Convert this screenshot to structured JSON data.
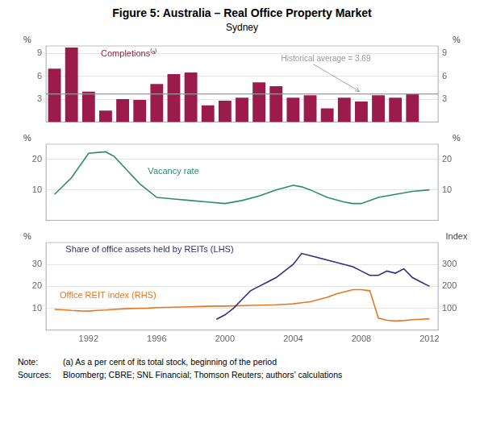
{
  "title": "Figure 5: Australia – Real Office Property Market",
  "subtitle": "Sydney",
  "notes": [
    {
      "label": "Note:",
      "text": "(a) As a per cent of its total stock, beginning of the period"
    },
    {
      "label": "Sources:",
      "text": "Bloomberg; CBRE; SNL Financial; Thomson Reuters; authors’ calculations"
    }
  ],
  "chart_data": [
    {
      "type": "bar",
      "x": [
        1990,
        1991,
        1992,
        1993,
        1994,
        1995,
        1996,
        1997,
        1998,
        1999,
        2000,
        2001,
        2002,
        2003,
        2004,
        2005,
        2006,
        2007,
        2008,
        2009,
        2010,
        2011
      ],
      "series": [
        {
          "name": "Completions⁽ᵃ⁾",
          "color": "#9B1B4A",
          "values": [
            7.0,
            9.8,
            4.0,
            1.5,
            3.0,
            2.9,
            5.0,
            6.3,
            6.5,
            2.2,
            2.8,
            3.2,
            5.2,
            4.7,
            3.2,
            3.5,
            1.8,
            3.2,
            2.7,
            3.5,
            3.2,
            3.7
          ]
        }
      ],
      "annotations": [
        {
          "text": "Historical average = 3.69",
          "y": 3.69,
          "color": "#999999"
        }
      ],
      "xlim": [
        1989.5,
        2012.5
      ],
      "ylim": [
        0,
        10
      ],
      "yticks": [
        3,
        6,
        9
      ],
      "ylabel": "%",
      "y2lim": [
        0,
        10
      ],
      "y2ticks": [
        3,
        6,
        9
      ],
      "y2label": "%",
      "grid": "y",
      "tick_labels": "y"
    },
    {
      "type": "line",
      "x": [
        1990,
        1991,
        1992,
        1993,
        1993.5,
        1994,
        1995,
        1996,
        1997,
        1998,
        1999,
        2000,
        2001,
        2002,
        2003,
        2004,
        2004.5,
        2005,
        2006,
        2007,
        2007.5,
        2008,
        2009,
        2010,
        2011,
        2012
      ],
      "series": [
        {
          "name": "Vacancy rate",
          "color": "#2D8B72",
          "values": [
            8.5,
            14.0,
            22.0,
            22.5,
            21.0,
            18.0,
            12.0,
            7.5,
            7.0,
            6.5,
            6.0,
            5.5,
            6.5,
            8.0,
            10.0,
            11.5,
            11.0,
            10.0,
            7.5,
            6.0,
            5.5,
            5.5,
            7.5,
            8.5,
            9.5,
            10.0
          ]
        }
      ],
      "xlim": [
        1989.5,
        2012.5
      ],
      "ylim": [
        0,
        25
      ],
      "yticks": [
        10,
        20
      ],
      "ylabel": "%",
      "y2lim": [
        0,
        25
      ],
      "y2ticks": [
        10,
        20
      ],
      "y2label": "%",
      "grid": "y",
      "tick_labels": "y"
    },
    {
      "type": "line",
      "series": [
        {
          "name": "Share of office assets held by REITs (LHS)",
          "color": "#2B3080",
          "axis": "y",
          "x": [
            1999.5,
            2000.0,
            2000.5,
            2001.0,
            2001.5,
            2002.0,
            2002.5,
            2003.0,
            2003.5,
            2004.0,
            2004.5,
            2005.0,
            2005.5,
            2006.0,
            2006.5,
            2007.0,
            2007.5,
            2008.0,
            2008.5,
            2009.0,
            2009.5,
            2010.0,
            2010.5,
            2011.0,
            2011.5,
            2012.0
          ],
          "values": [
            5,
            7,
            10,
            14,
            18,
            20,
            22,
            24,
            27,
            30,
            35,
            34,
            33,
            32,
            31,
            30,
            29,
            27,
            25,
            25,
            27,
            26,
            28,
            24,
            22,
            20
          ]
        },
        {
          "name": "Office REIT index (RHS)",
          "color": "#E87722",
          "axis": "y2",
          "x": [
            1990.0,
            1990.5,
            1991.0,
            1991.5,
            1992.0,
            1992.5,
            1993.0,
            1993.5,
            1994.0,
            1994.5,
            1995.0,
            1995.5,
            1996.0,
            1996.5,
            1997.0,
            1997.5,
            1998.0,
            1998.5,
            1999.0,
            1999.5,
            2000.0,
            2000.5,
            2001.0,
            2001.5,
            2002.0,
            2002.5,
            2003.0,
            2003.5,
            2004.0,
            2004.5,
            2005.0,
            2005.5,
            2006.0,
            2006.5,
            2007.0,
            2007.5,
            2008.0,
            2008.5,
            2009.0,
            2009.5,
            2010.0,
            2010.5,
            2011.0,
            2011.5,
            2012.0
          ],
          "values": [
            95,
            93,
            90,
            88,
            87,
            90,
            92,
            95,
            97,
            99,
            100,
            101,
            103,
            104,
            105,
            106,
            107,
            108,
            109,
            110,
            110,
            111,
            112,
            113,
            114,
            115,
            116,
            118,
            120,
            125,
            130,
            140,
            150,
            165,
            175,
            185,
            185,
            180,
            55,
            45,
            42,
            44,
            48,
            50,
            52
          ]
        }
      ],
      "xlim": [
        1989.5,
        2012.5
      ],
      "xticks": [
        1992,
        1996,
        2000,
        2004,
        2008,
        2012
      ],
      "ylim": [
        0,
        40
      ],
      "yticks": [
        10,
        20,
        30
      ],
      "ylabel": "%",
      "y2lim": [
        0,
        400
      ],
      "y2ticks": [
        100,
        200,
        300
      ],
      "y2label": "Index",
      "grid": "y"
    }
  ]
}
